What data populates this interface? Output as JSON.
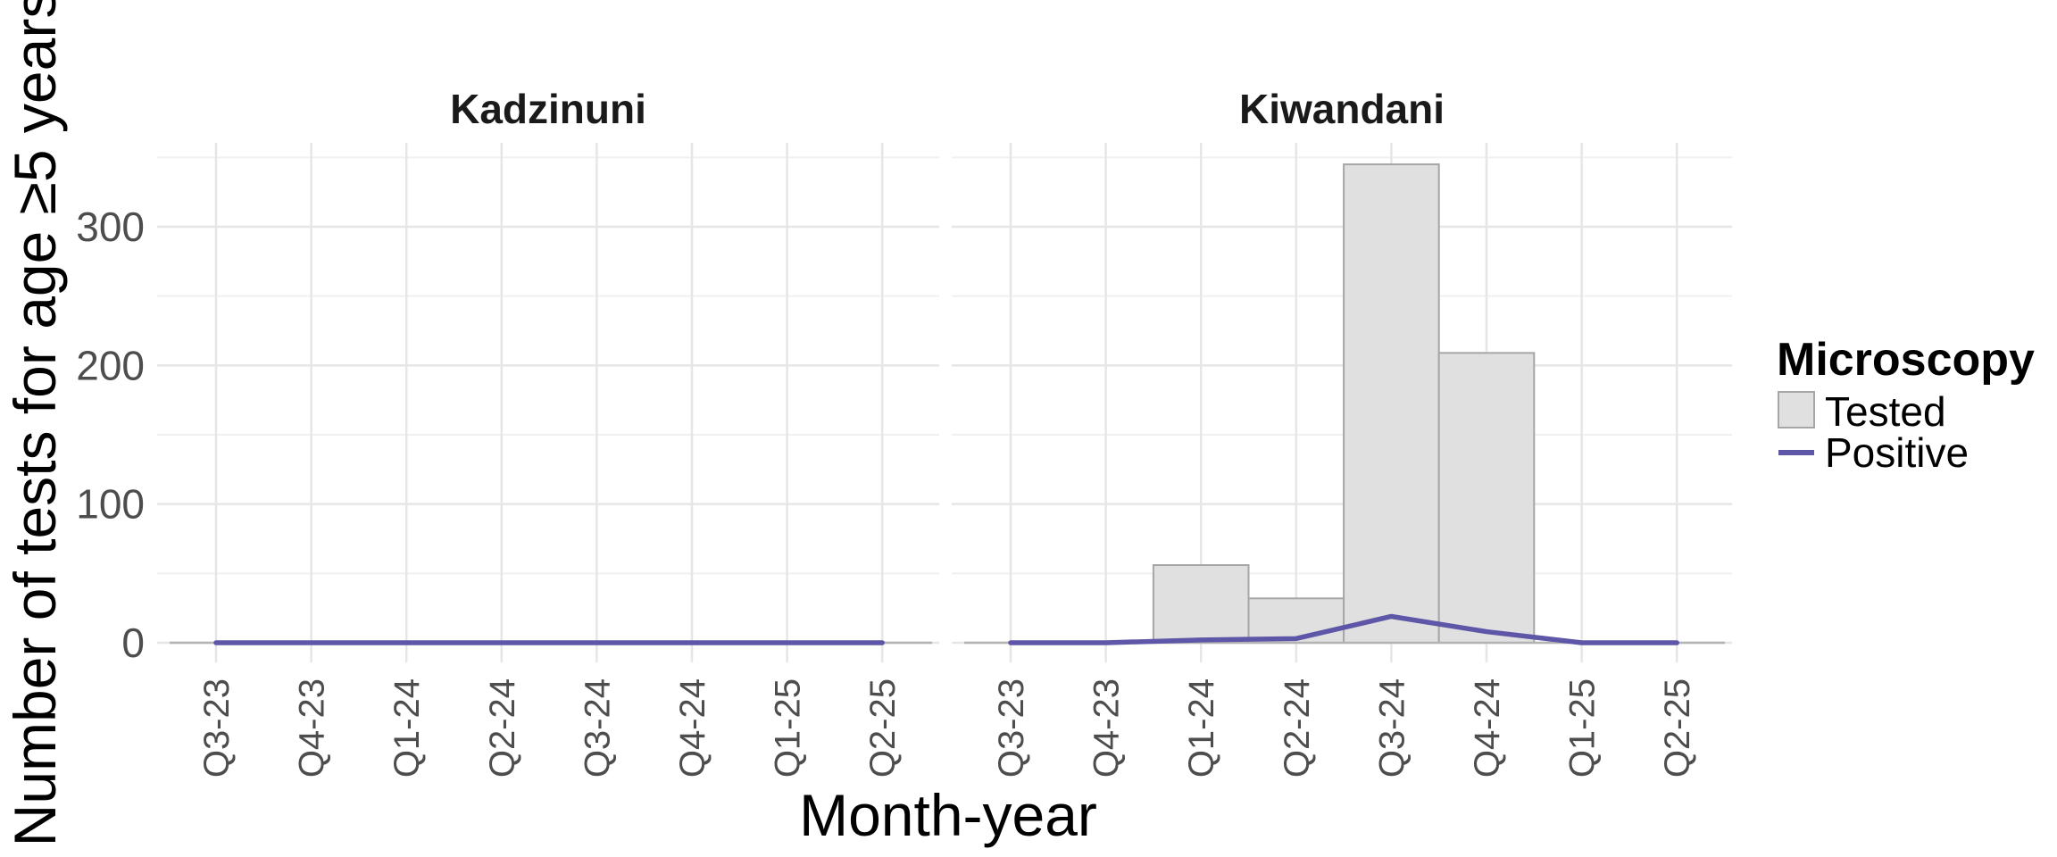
{
  "chart_data": {
    "type": "bar",
    "categories": [
      "Q3-23",
      "Q4-23",
      "Q1-24",
      "Q2-24",
      "Q3-24",
      "Q4-24",
      "Q1-25",
      "Q2-25"
    ],
    "ylim": [
      0,
      350
    ],
    "y_ticks": [
      0,
      100,
      200,
      300
    ],
    "xlabel": "Month-year",
    "ylabel": "Number of tests for age ≥5 years",
    "grid": true,
    "legend": {
      "title": "Microscopy",
      "position": "right",
      "entries": [
        {
          "label": "Tested",
          "kind": "bar",
          "color": "#e0e0e0",
          "border": "#a6a6a6"
        },
        {
          "label": "Positive",
          "kind": "line",
          "color": "#5e56a6"
        }
      ]
    },
    "panels": [
      {
        "title": "Kadzinuni",
        "series": [
          {
            "name": "Tested",
            "type": "bar",
            "values": [
              0,
              0,
              0,
              0,
              0,
              0,
              0,
              0
            ]
          },
          {
            "name": "Positive",
            "type": "line",
            "values": [
              0,
              0,
              0,
              0,
              0,
              0,
              0,
              0
            ]
          }
        ]
      },
      {
        "title": "Kiwandani",
        "series": [
          {
            "name": "Tested",
            "type": "bar",
            "values": [
              0,
              0,
              56,
              32,
              345,
              209,
              0,
              0
            ]
          },
          {
            "name": "Positive",
            "type": "line",
            "values": [
              0,
              0,
              2,
              3,
              19,
              8,
              0,
              0
            ]
          }
        ]
      }
    ]
  }
}
